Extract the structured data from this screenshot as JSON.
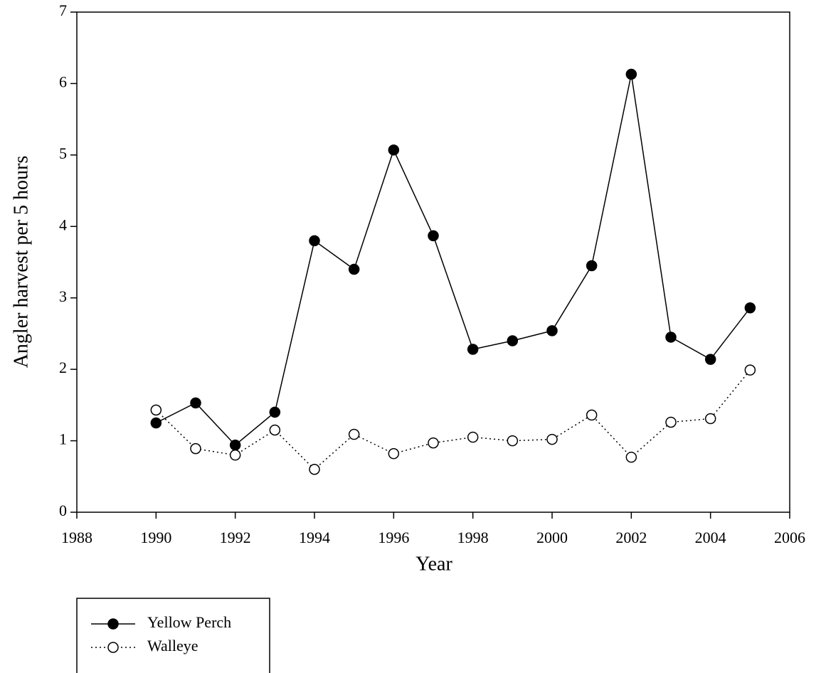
{
  "chart_data": {
    "type": "line",
    "xlabel": "Year",
    "ylabel": "Angler harvest per 5 hours",
    "x": [
      1990,
      1991,
      1992,
      1993,
      1994,
      1995,
      1996,
      1997,
      1998,
      1999,
      2000,
      2001,
      2002,
      2003,
      2004,
      2005
    ],
    "series": [
      {
        "name": "Yellow Perch",
        "color": "#000000",
        "line_style": "solid",
        "marker_fill": "#000000",
        "values": [
          1.25,
          1.53,
          0.94,
          1.4,
          3.8,
          3.4,
          5.07,
          3.87,
          2.28,
          2.4,
          2.54,
          3.45,
          6.13,
          2.45,
          2.14,
          2.86
        ]
      },
      {
        "name": "Walleye",
        "color": "#000000",
        "line_style": "dotted",
        "marker_fill": "#ffffff",
        "values": [
          1.43,
          0.89,
          0.8,
          1.15,
          0.6,
          1.09,
          0.82,
          0.97,
          1.05,
          1.0,
          1.02,
          1.36,
          0.77,
          1.26,
          1.31,
          1.99
        ]
      }
    ],
    "xlim": [
      1988,
      2006
    ],
    "xticks": [
      1988,
      1990,
      1992,
      1994,
      1996,
      1998,
      2000,
      2002,
      2004,
      2006
    ],
    "ylim": [
      0,
      7
    ],
    "yticks": [
      0,
      1,
      2,
      3,
      4,
      5,
      6,
      7
    ],
    "grid": false,
    "legend": "below-left"
  }
}
